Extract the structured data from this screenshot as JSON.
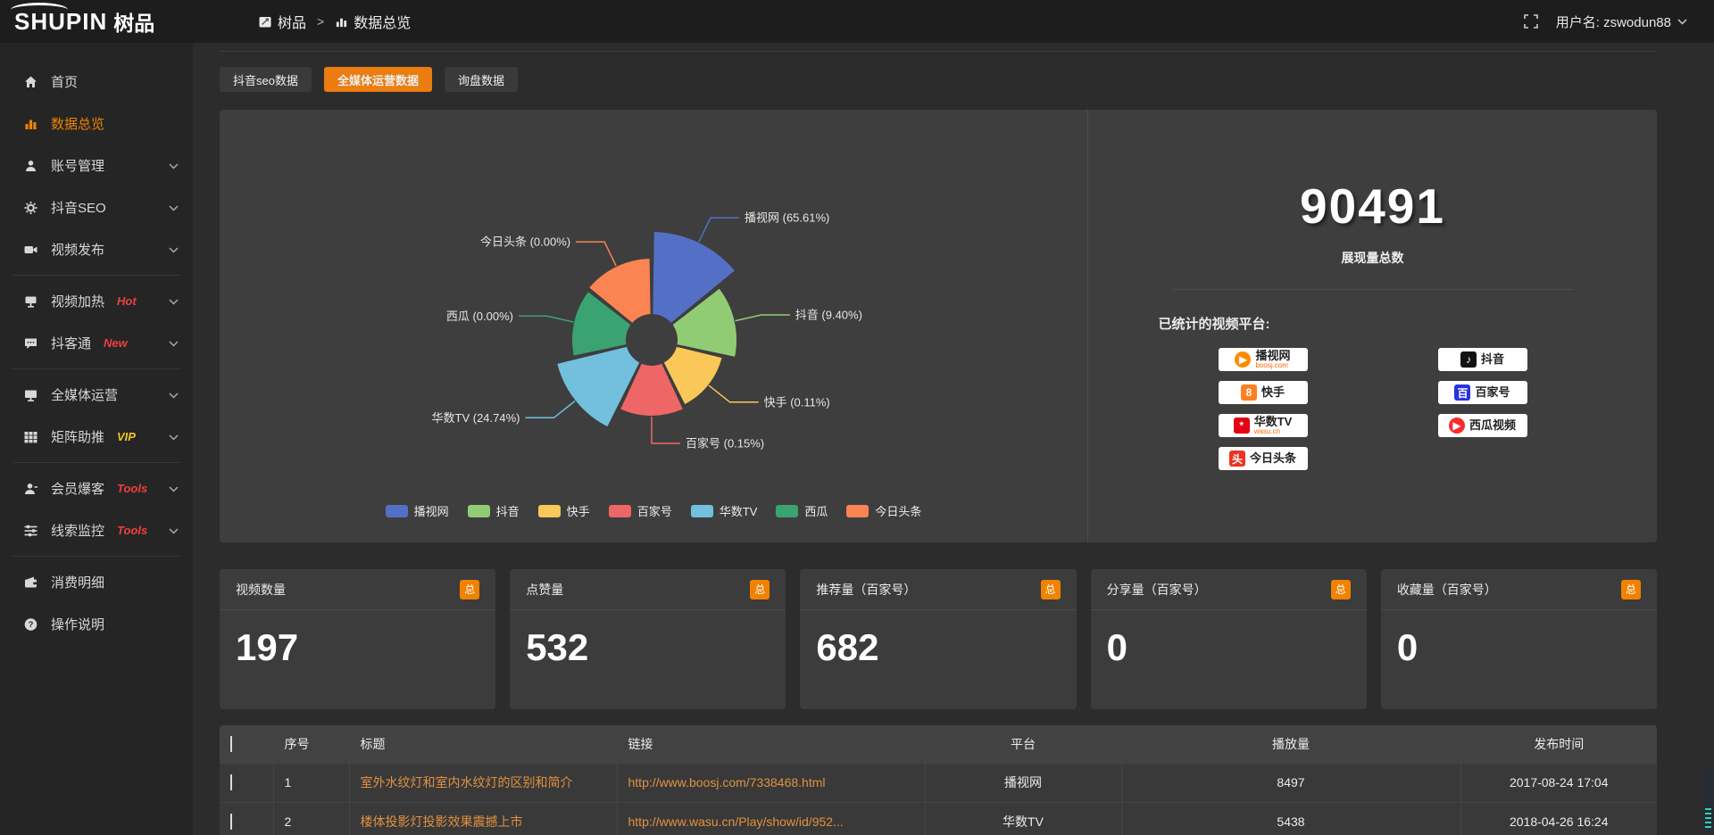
{
  "topbar": {
    "logo_main": "SHUPIN",
    "logo_sub": "树品",
    "breadcrumb": {
      "root": "树品",
      "separator": ">",
      "current": "数据总览"
    },
    "username": "用户名: zswodun88"
  },
  "sidebar": {
    "items": [
      {
        "label": "首页"
      },
      {
        "label": "数据总览"
      },
      {
        "label": "账号管理"
      },
      {
        "label": "抖音SEO"
      },
      {
        "label": "视频发布"
      },
      {
        "label": "视频加热",
        "tag": "Hot"
      },
      {
        "label": "抖客通",
        "tag": "New"
      },
      {
        "label": "全媒体运营"
      },
      {
        "label": "矩阵助推",
        "tag": "VIP"
      },
      {
        "label": "会员爆客",
        "tag": "Tools"
      },
      {
        "label": "线索监控",
        "tag": "Tools"
      },
      {
        "label": "消费明细"
      },
      {
        "label": "操作说明"
      }
    ]
  },
  "tabs": [
    {
      "label": "抖音seo数据",
      "active": false
    },
    {
      "label": "全媒体运营数据",
      "active": true
    },
    {
      "label": "询盘数据",
      "active": false
    }
  ],
  "chart_data": {
    "type": "pie",
    "variant": "nightingale-rose",
    "categories": [
      "播视网",
      "抖音",
      "快手",
      "百家号",
      "华数TV",
      "西瓜",
      "今日头条"
    ],
    "values": [
      65.61,
      9.4,
      0.11,
      0.15,
      24.74,
      0.0,
      0.0
    ],
    "value_unit": "percent",
    "labels": [
      "播视网 (65.61%)",
      "抖音 (9.40%)",
      "快手 (0.11%)",
      "百家号 (0.15%)",
      "华数TV (24.74%)",
      "西瓜 (0.00%)",
      "今日头条 (0.00%)"
    ],
    "colors": [
      "#5470c6",
      "#91cc75",
      "#fac858",
      "#ee6666",
      "#73c0de",
      "#3ba272",
      "#fc8452"
    ],
    "radii": [
      122,
      96,
      82,
      86,
      110,
      90,
      92
    ],
    "inner_radius": 28,
    "legend_position": "bottom"
  },
  "summary": {
    "value": "90491",
    "label": "展现量总数",
    "platforms_title": "已统计的视频平台:",
    "platforms": [
      {
        "name": "播视网",
        "sub": "boosj.com",
        "glyph": "▶",
        "glyph_bg": "#ff8a00"
      },
      {
        "name": "快手",
        "glyph": "8",
        "glyph_bg": "#ff7f23"
      },
      {
        "name": "华数TV",
        "sub": "wasu.cn",
        "glyph": "*",
        "glyph_bg": "#e60013"
      },
      {
        "name": "今日头条",
        "glyph": "头",
        "glyph_bg": "#ed3321"
      },
      {
        "name": "抖音",
        "glyph": "♪",
        "glyph_bg": "#121212"
      },
      {
        "name": "百家号",
        "glyph": "百",
        "glyph_bg": "#2932e1"
      },
      {
        "name": "西瓜视频",
        "glyph": "▶",
        "glyph_bg": "#fa2c2c"
      }
    ]
  },
  "stat_cards": [
    {
      "label": "视频数量",
      "badge": "总",
      "value": "197"
    },
    {
      "label": "点赞量",
      "badge": "总",
      "value": "532"
    },
    {
      "label": "推荐量（百家号）",
      "badge": "总",
      "value": "682"
    },
    {
      "label": "分享量（百家号）",
      "badge": "总",
      "value": "0"
    },
    {
      "label": "收藏量（百家号）",
      "badge": "总",
      "value": "0"
    }
  ],
  "table": {
    "headers": [
      "序号",
      "标题",
      "链接",
      "平台",
      "播放量",
      "发布时间"
    ],
    "rows": [
      {
        "no": "1",
        "title": "室外水纹灯和室内水纹灯的区别和简介",
        "link": "http://www.boosj.com/7338468.html",
        "platform": "播视网",
        "plays": "8497",
        "time": "2017-08-24 17:04"
      },
      {
        "no": "2",
        "title": "楼体投影灯投影效果震撼上市",
        "link": "http://www.wasu.cn/Play/show/id/952...",
        "platform": "华数TV",
        "plays": "5438",
        "time": "2018-04-26 16:24"
      }
    ]
  },
  "colors": {
    "accent": "#ea7c10",
    "sidebar_active": "#f08200",
    "link": "#e2913f",
    "hot_tag": "#f03e3e",
    "vip_tag": "#f5c523"
  }
}
